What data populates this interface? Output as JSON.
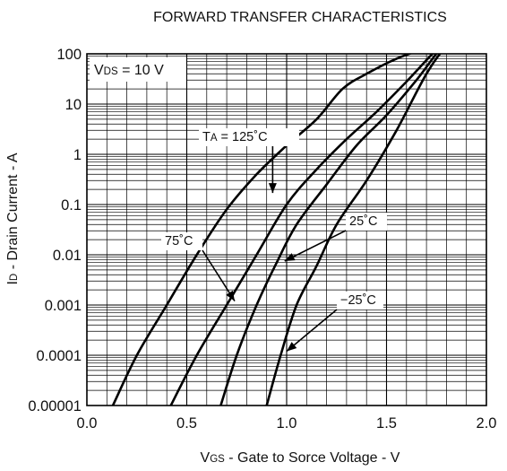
{
  "chart_data": {
    "type": "line",
    "title": "FORWARD TRANSFER CHARACTERISTICS",
    "xlabel": {
      "main": "V",
      "sub": "GS",
      "rest": " - Gate to Sorce Voltage - V"
    },
    "ylabel": {
      "main": "I",
      "sub": "D",
      "rest": " - Drain Current - A"
    },
    "xlim": [
      0,
      2
    ],
    "ylim": [
      1e-05,
      100
    ],
    "yscale": "log",
    "grid": true,
    "x_ticks": [
      {
        "value": 0,
        "label": "0.0"
      },
      {
        "value": 0.5,
        "label": "0.5"
      },
      {
        "value": 1,
        "label": "1.0"
      },
      {
        "value": 1.5,
        "label": "1.5"
      },
      {
        "value": 2,
        "label": "2.0"
      }
    ],
    "y_ticks": [
      {
        "value": 100,
        "label": "100"
      },
      {
        "value": 10,
        "label": "10"
      },
      {
        "value": 1,
        "label": "1"
      },
      {
        "value": 0.1,
        "label": "0.1"
      },
      {
        "value": 0.01,
        "label": "0.01"
      },
      {
        "value": 0.001,
        "label": "0.001"
      },
      {
        "value": 0.0001,
        "label": "0.0001"
      },
      {
        "value": 1e-05,
        "label": "0.00001"
      }
    ],
    "condition": {
      "main": "V",
      "sub": "DS",
      "rest": " = 10 V"
    },
    "series": [
      {
        "name": "T A = 125˚C",
        "x": [
          0.13,
          0.25,
          0.4,
          0.55,
          0.7,
          0.85,
          1.0,
          1.15,
          1.28,
          1.4,
          1.55,
          1.7,
          1.78
        ],
        "y": [
          1e-05,
          0.0001,
          0.001,
          0.01,
          0.08,
          0.4,
          1.5,
          5,
          20,
          40,
          80,
          130,
          160
        ]
      },
      {
        "name": "75˚C",
        "x": [
          0.42,
          0.55,
          0.7,
          0.85,
          1.0,
          1.15,
          1.3,
          1.45,
          1.6,
          1.74,
          1.8
        ],
        "y": [
          1e-05,
          0.0001,
          0.001,
          0.01,
          0.1,
          0.5,
          2,
          7,
          28,
          110,
          170
        ]
      },
      {
        "name": "25˚C",
        "x": [
          0.67,
          0.75,
          0.85,
          0.95,
          1.05,
          1.2,
          1.35,
          1.5,
          1.65,
          1.78,
          1.85
        ],
        "y": [
          1e-05,
          0.0001,
          0.001,
          0.007,
          0.04,
          0.25,
          1.5,
          6,
          30,
          140,
          190
        ]
      },
      {
        "name": "−25˚C",
        "x": [
          0.9,
          0.97,
          1.05,
          1.15,
          1.25,
          1.4,
          1.55,
          1.7,
          1.8,
          1.88
        ],
        "y": [
          1e-05,
          0.0001,
          0.001,
          0.006,
          0.04,
          0.3,
          3,
          40,
          140,
          200
        ]
      }
    ],
    "annotations": [
      {
        "series": "T A = 125˚C",
        "main": "T",
        "sub": "A",
        "rest": " = 125˚C",
        "point": [
          0.93,
          0.17
        ]
      },
      {
        "series": "75˚C",
        "main": "75˚C",
        "sub": "",
        "rest": "",
        "point": [
          0.74,
          0.0012
        ]
      },
      {
        "series": "25˚C",
        "main": "25˚C",
        "sub": "",
        "rest": "",
        "point": [
          0.99,
          0.0075
        ]
      },
      {
        "series": "−25˚C",
        "main": "−25˚C",
        "sub": "",
        "rest": "",
        "point": [
          1.0,
          0.00012
        ]
      }
    ]
  }
}
